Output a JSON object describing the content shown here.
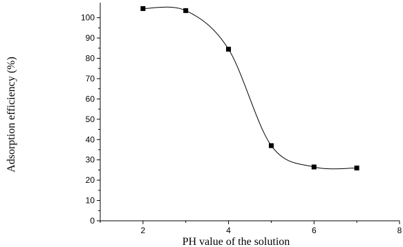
{
  "chart_data": {
    "type": "line",
    "title": "",
    "xlabel": "PH value of the solution",
    "ylabel": "Adsorption efficiency (%)",
    "xlim": [
      1,
      8
    ],
    "ylim": [
      0,
      106
    ],
    "x_ticks": [
      2,
      4,
      6,
      8
    ],
    "y_ticks": [
      0,
      10,
      20,
      30,
      40,
      50,
      60,
      70,
      80,
      90,
      100
    ],
    "x_tick_labels": [
      "2",
      "4",
      "6",
      "8"
    ],
    "y_tick_labels": [
      "0",
      "10",
      "20",
      "30",
      "40",
      "50",
      "60",
      "70",
      "80",
      "90",
      "100"
    ],
    "grid": false,
    "legend": "none",
    "series": [
      {
        "marker": "square",
        "color": "#000000",
        "x": [
          2,
          3,
          4,
          5,
          6,
          7
        ],
        "y": [
          104.5,
          103.5,
          84.5,
          37,
          26.5,
          26
        ]
      }
    ]
  }
}
